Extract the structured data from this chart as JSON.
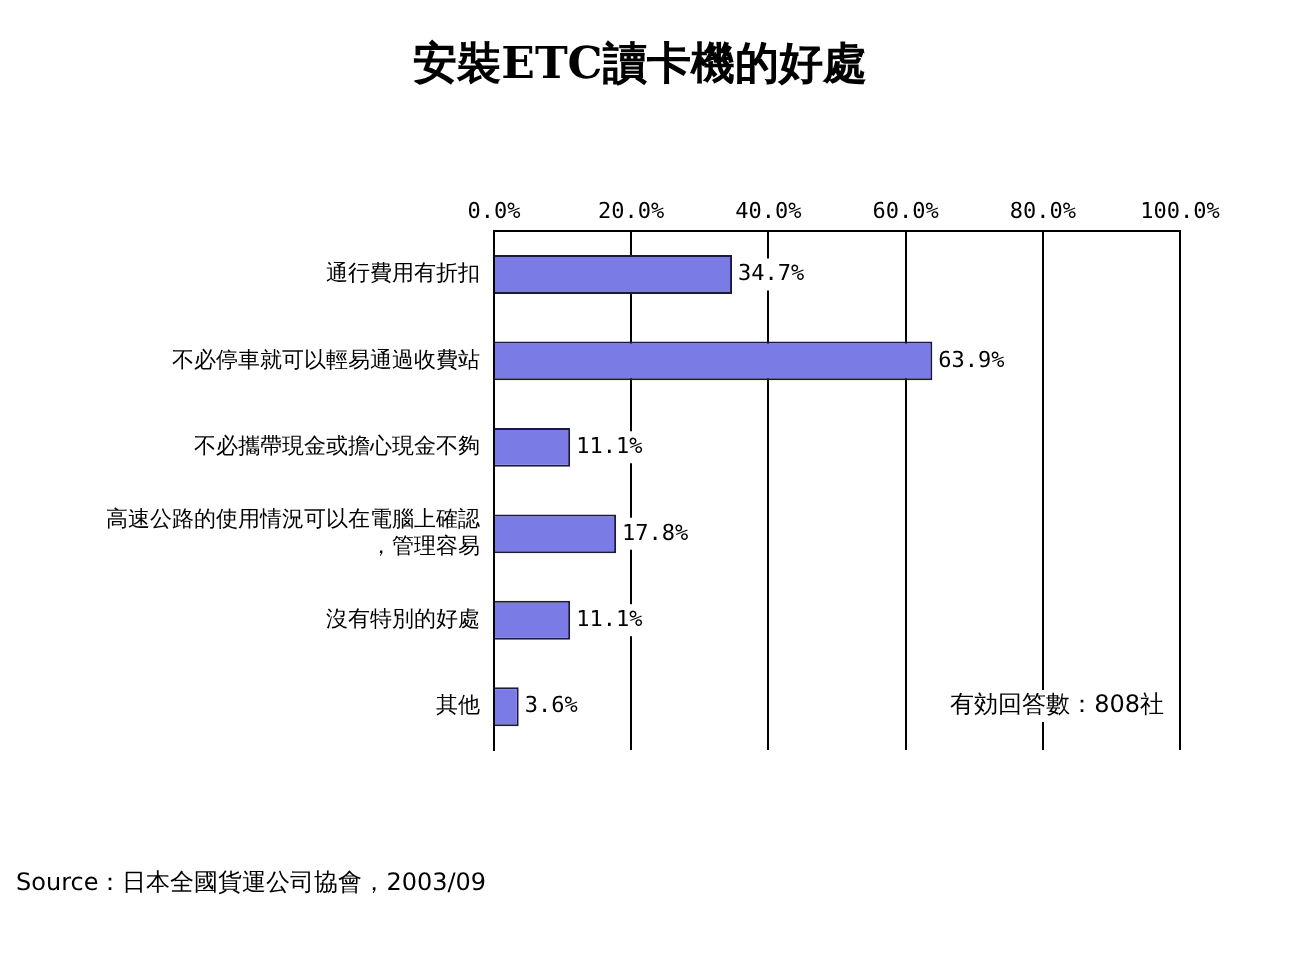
{
  "chart_data": {
    "type": "bar",
    "orientation": "horizontal",
    "title": "安裝ETC讀卡機的好處",
    "categories": [
      "通行費用有折扣",
      "不必停車就可以輕易通過收費站",
      "不必攜帶現金或擔心現金不夠",
      "高速公路的使用情況可以在電腦上確認，管理容易",
      "沒有特別的好處",
      "其他"
    ],
    "values": [
      34.7,
      63.9,
      11.1,
      17.8,
      11.1,
      3.6
    ],
    "value_labels": [
      "34.7%",
      "63.9%",
      "11.1%",
      "17.8%",
      "11.1%",
      "3.6%"
    ],
    "color": "#7b7be6",
    "xlim": [
      0,
      100
    ],
    "xticks": [
      {
        "value": 0,
        "label": "0.0%"
      },
      {
        "value": 20,
        "label": "20.0%"
      },
      {
        "value": 40,
        "label": "40.0%"
      },
      {
        "value": 60,
        "label": "60.0%"
      },
      {
        "value": 80,
        "label": "80.0%"
      },
      {
        "value": 100,
        "label": "100.0%"
      }
    ],
    "grid": "x",
    "legend": false,
    "annotations": [
      "有効回答數：808社",
      "Source：日本全國貨運公司協會，2003/09"
    ]
  }
}
